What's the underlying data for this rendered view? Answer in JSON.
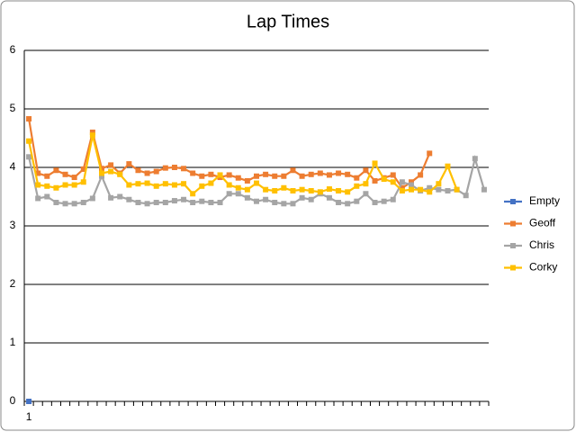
{
  "chart_data": {
    "type": "line",
    "title": "Lap Times",
    "categories": [
      "1",
      null,
      null,
      null,
      null,
      null,
      null,
      null,
      null,
      null,
      null,
      null,
      null,
      null,
      null,
      null,
      null,
      null,
      null,
      null,
      null,
      null,
      null,
      null,
      null,
      null,
      null,
      null,
      null,
      null,
      null,
      null,
      null,
      null,
      null,
      null,
      null,
      null,
      null,
      null,
      null,
      null,
      null,
      null,
      null,
      null,
      null,
      null,
      null,
      null,
      null
    ],
    "series": [
      {
        "name": "Empty",
        "color": "#4472c4",
        "values": [
          0,
          null,
          null,
          null,
          null,
          null,
          null,
          null,
          null,
          null,
          null,
          null,
          null,
          null,
          null,
          null,
          null,
          null,
          null,
          null,
          null,
          null,
          null,
          null,
          null,
          null,
          null,
          null,
          null,
          null,
          null,
          null,
          null,
          null,
          null,
          null,
          null,
          null,
          null,
          null,
          null,
          null,
          null,
          null,
          null,
          null,
          null,
          null,
          null,
          null,
          null
        ]
      },
      {
        "name": "Geoff",
        "color": "#ed7d31",
        "values": [
          4.83,
          3.9,
          3.85,
          3.95,
          3.88,
          3.83,
          3.97,
          4.6,
          3.98,
          4.04,
          3.9,
          4.06,
          3.95,
          3.9,
          3.93,
          3.99,
          4.0,
          3.98,
          3.9,
          3.85,
          3.88,
          3.83,
          3.87,
          3.82,
          3.77,
          3.85,
          3.88,
          3.85,
          3.85,
          3.95,
          3.85,
          3.88,
          3.9,
          3.87,
          3.9,
          3.88,
          3.82,
          3.95,
          3.77,
          3.82,
          3.87,
          3.65,
          3.75,
          3.87,
          4.24,
          null,
          null,
          null,
          null,
          null,
          null
        ]
      },
      {
        "name": "Chris",
        "color": "#a5a5a5",
        "values": [
          4.18,
          3.47,
          3.5,
          3.4,
          3.38,
          3.38,
          3.4,
          3.47,
          3.85,
          3.48,
          3.5,
          3.45,
          3.4,
          3.38,
          3.4,
          3.4,
          3.43,
          3.45,
          3.4,
          3.42,
          3.4,
          3.4,
          3.55,
          3.55,
          3.48,
          3.42,
          3.45,
          3.4,
          3.38,
          3.38,
          3.48,
          3.45,
          3.55,
          3.48,
          3.4,
          3.38,
          3.42,
          3.55,
          3.4,
          3.42,
          3.45,
          3.75,
          3.7,
          3.6,
          3.65,
          3.62,
          3.6,
          3.62,
          3.52,
          4.15,
          3.62
        ]
      },
      {
        "name": "Corky",
        "color": "#ffc000",
        "values": [
          4.45,
          3.7,
          3.68,
          3.65,
          3.7,
          3.7,
          3.75,
          4.55,
          3.9,
          3.93,
          3.88,
          3.7,
          3.72,
          3.73,
          3.68,
          3.72,
          3.7,
          3.72,
          3.55,
          3.68,
          3.73,
          3.87,
          3.7,
          3.65,
          3.62,
          3.73,
          3.62,
          3.6,
          3.65,
          3.6,
          3.62,
          3.6,
          3.58,
          3.63,
          3.6,
          3.58,
          3.68,
          3.72,
          4.07,
          3.8,
          3.75,
          3.6,
          3.62,
          3.62,
          3.58,
          3.72,
          4.02,
          3.62,
          null,
          null,
          null
        ]
      }
    ],
    "ylim": [
      0,
      6
    ],
    "yticks": [
      0,
      1,
      2,
      3,
      4,
      5,
      6
    ],
    "grid": true,
    "legend": "right"
  }
}
